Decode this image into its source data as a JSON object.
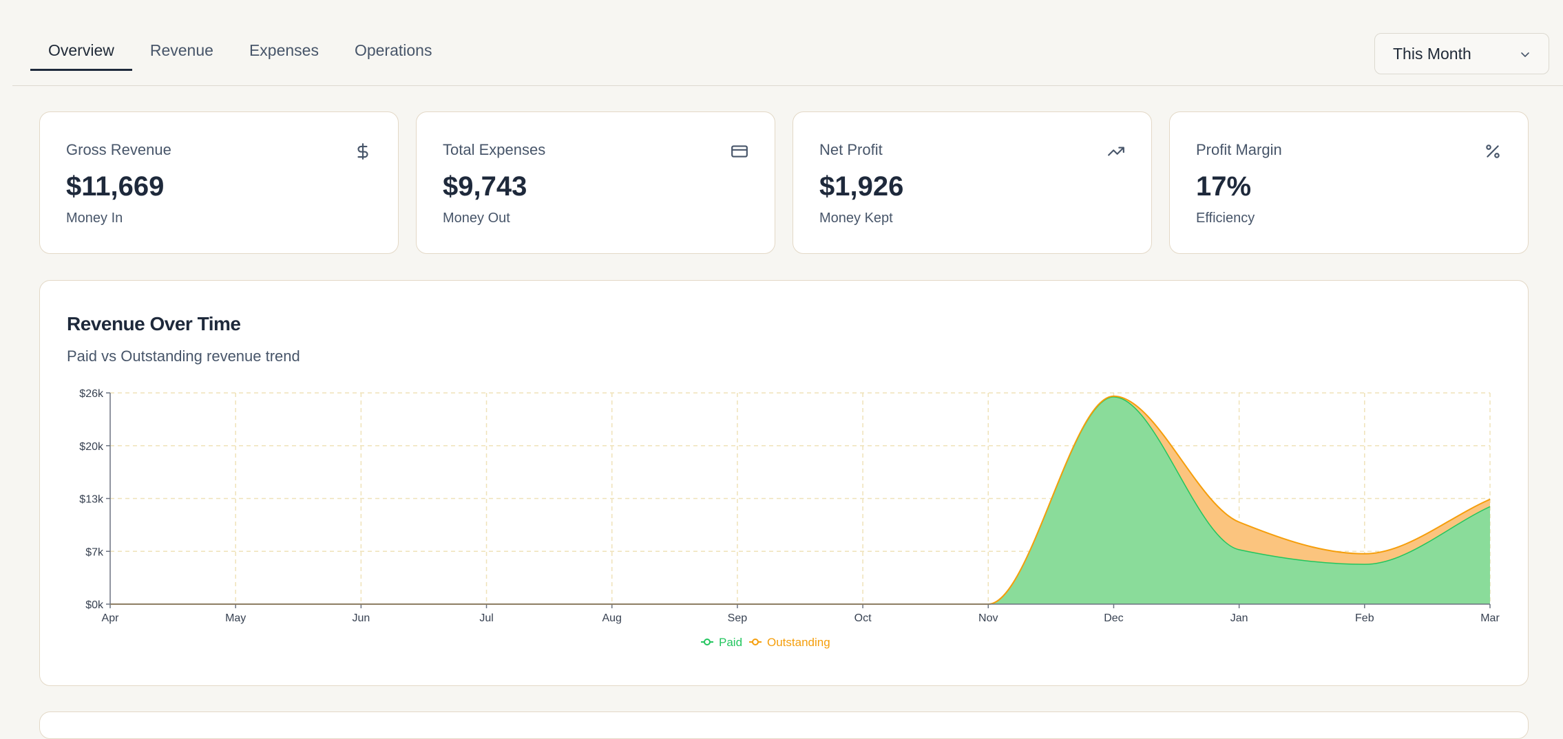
{
  "tabs": [
    {
      "label": "Overview",
      "active": true
    },
    {
      "label": "Revenue",
      "active": false
    },
    {
      "label": "Expenses",
      "active": false
    },
    {
      "label": "Operations",
      "active": false
    }
  ],
  "period_select": {
    "value": "This Month"
  },
  "cards": [
    {
      "label": "Gross Revenue",
      "value": "$11,669",
      "sub": "Money In",
      "icon": "dollar-icon"
    },
    {
      "label": "Total Expenses",
      "value": "$9,743",
      "sub": "Money Out",
      "icon": "credit-card-icon"
    },
    {
      "label": "Net Profit",
      "value": "$1,926",
      "sub": "Money Kept",
      "icon": "trending-up-icon"
    },
    {
      "label": "Profit Margin",
      "value": "17%",
      "sub": "Efficiency",
      "icon": "percent-icon"
    }
  ],
  "colors": {
    "paid_fill": "#8adc9a",
    "paid_stroke": "#22c55e",
    "outstanding_fill": "#fbc47e",
    "outstanding_stroke": "#f59e0b",
    "grid": "#efe2b8",
    "axis": "#6b7280"
  },
  "chart_data": {
    "type": "area",
    "title": "Revenue Over Time",
    "subtitle": "Paid vs Outstanding revenue trend",
    "categories": [
      "Apr",
      "May",
      "Jun",
      "Jul",
      "Aug",
      "Sep",
      "Oct",
      "Nov",
      "Dec",
      "Jan",
      "Feb",
      "Mar"
    ],
    "series": [
      {
        "name": "Paid",
        "values": [
          0,
          0,
          0,
          0,
          0,
          0,
          0,
          0,
          25500,
          6700,
          4900,
          12000
        ]
      },
      {
        "name": "Outstanding",
        "values": [
          0,
          0,
          0,
          0,
          0,
          0,
          0,
          0,
          100,
          3400,
          1300,
          900
        ]
      }
    ],
    "stacked": true,
    "yticks": [
      "$0k",
      "$7k",
      "$13k",
      "$20k",
      "$26k"
    ],
    "ylim": [
      0,
      26000
    ],
    "grid": true,
    "legend": "bottom-center"
  }
}
